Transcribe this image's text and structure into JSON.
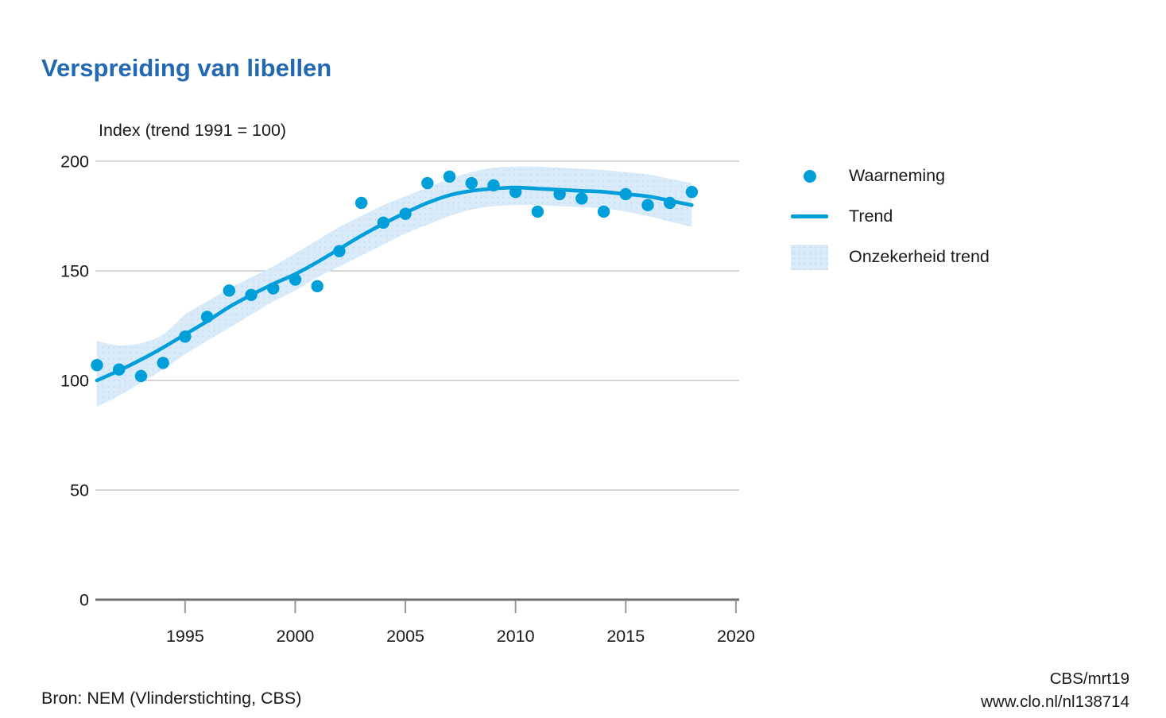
{
  "header": {
    "title": "Verspreiding van libellen"
  },
  "chart": {
    "subtitle": "Index (trend 1991 = 100)"
  },
  "legend": {
    "items": [
      {
        "label": "Waarneming",
        "marker": "dot"
      },
      {
        "label": "Trend",
        "marker": "line"
      },
      {
        "label": "Onzekerheid trend",
        "marker": "band"
      }
    ]
  },
  "footer": {
    "source": "Bron: NEM (Vlinderstichting, CBS)",
    "credit_line1": "CBS/mrt19",
    "credit_line2": "www.clo.nl/nl138714"
  },
  "chart_data": {
    "type": "line",
    "title": "Verspreiding van libellen",
    "xlabel": "",
    "ylabel": "Index (trend 1991 = 100)",
    "xlim": [
      1991,
      2020
    ],
    "ylim": [
      0,
      200
    ],
    "x_ticks": [
      1995,
      2000,
      2005,
      2010,
      2015,
      2020
    ],
    "y_ticks": [
      0,
      50,
      100,
      150,
      200
    ],
    "grid": true,
    "legend_position": "right",
    "x": [
      1991,
      1992,
      1993,
      1994,
      1995,
      1996,
      1997,
      1998,
      1999,
      2000,
      2001,
      2002,
      2003,
      2004,
      2005,
      2006,
      2007,
      2008,
      2009,
      2010,
      2011,
      2012,
      2013,
      2014,
      2015,
      2016,
      2017,
      2018
    ],
    "series": [
      {
        "name": "Waarneming",
        "type": "scatter",
        "values": [
          107,
          105,
          102,
          108,
          120,
          129,
          141,
          139,
          142,
          146,
          143,
          159,
          181,
          172,
          176,
          190,
          193,
          190,
          189,
          186,
          177,
          185,
          183,
          177,
          185,
          180,
          181,
          186
        ]
      },
      {
        "name": "Trend",
        "type": "line",
        "values": [
          100,
          104.5,
          109.5,
          115,
          121,
          127,
          133.5,
          139,
          144,
          148.5,
          154,
          160,
          166,
          171.5,
          176.5,
          181,
          184.5,
          186.5,
          187.5,
          188,
          187.5,
          187,
          186.5,
          186,
          185,
          184,
          182,
          180
        ]
      },
      {
        "name": "Onzekerheid trend",
        "type": "band",
        "upper": [
          118,
          116,
          117,
          121,
          130,
          136,
          142,
          147,
          152,
          158,
          164,
          170,
          175,
          180,
          184,
          188,
          192,
          195,
          197,
          197.5,
          197.5,
          197,
          196.5,
          196,
          195,
          194,
          192,
          190
        ],
        "lower": [
          88,
          93,
          99,
          105,
          112,
          118,
          124,
          130,
          136,
          141,
          147,
          152,
          157,
          162,
          167,
          171,
          175,
          178,
          179.5,
          180,
          180,
          179.5,
          179,
          178.5,
          177,
          175,
          172.5,
          170
        ]
      }
    ],
    "colors": {
      "accent": "#009fda",
      "band": "#d9eaf8",
      "band_dot": "#bcd9ef",
      "grid": "#c9c9c9",
      "axis": "#6f6f6f",
      "tick": "#9a9a9a",
      "text": "#1a1a1a",
      "title": "#2268b2"
    }
  }
}
